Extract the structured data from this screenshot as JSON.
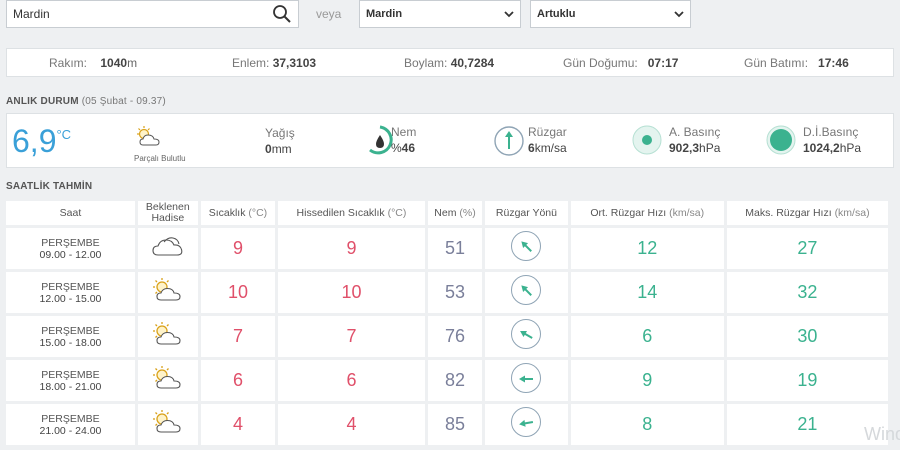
{
  "search": {
    "value": "Mardin"
  },
  "veya": "veya",
  "selects": {
    "city": "Mardin",
    "district": "Artuklu"
  },
  "location": {
    "rakim_label": "Rakım:",
    "rakim_value": "1040",
    "rakim_unit": "m",
    "enlem_label": "Enlem:",
    "enlem_value": "37,3103",
    "boylam_label": "Boylam:",
    "boylam_value": "40,7284",
    "gundogumu_label": "Gün Doğumu:",
    "gundogumu_value": "07:17",
    "gunbatimi_label": "Gün Batımı:",
    "gunbatimi_value": "17:46"
  },
  "current": {
    "title": "ANLIK DURUM",
    "subtitle": "(05 Şubat - 09.37)",
    "temp": "6,9",
    "temp_unit": "°C",
    "condition": "Parçalı Bulutlu",
    "condition_icon": "partly-cloudy-icon",
    "yagis_label": "Yağış",
    "yagis_value": "0",
    "yagis_unit": "mm",
    "nem_label": "Nem",
    "nem_prefix": "%",
    "nem_value": "46",
    "ruzgar_label": "Rüzgar",
    "ruzgar_value": "6",
    "ruzgar_unit": "km/sa",
    "abasinc_label": "A. Basınç",
    "abasinc_value": "902,3",
    "abasinc_unit": "hPa",
    "dibasinc_label": "D.İ.Basınç",
    "dibasinc_value": "1024,2",
    "dibasinc_unit": "hPa",
    "accent": "#3aa0d8",
    "green": "#3bb28f"
  },
  "hourly": {
    "title": "SAATLİK TAHMİN",
    "headers": {
      "saat": "Saat",
      "hadise": "Beklenen Hadise",
      "sicaklik": "Sıcaklık",
      "sicaklik_unit": "(°C)",
      "hissedilen": "Hissedilen Sıcaklık",
      "hissedilen_unit": "(°C)",
      "nem": "Nem",
      "nem_unit": "(%)",
      "ruzgar_yonu": "Rüzgar Yönü",
      "ort_ruzgar": "Ort. Rüzgar Hızı",
      "ort_ruzgar_unit": "(km/sa)",
      "maks_ruzgar": "Maks. Rüzgar Hızı",
      "maks_ruzgar_unit": "(km/sa)"
    },
    "rows": [
      {
        "day": "PERŞEMBE",
        "hours": "09.00 - 12.00",
        "icon": "cloudy-icon",
        "temp": "9",
        "feels": "9",
        "humidity": "51",
        "wind_dir_deg": 135,
        "avg_wind": "12",
        "max_wind": "27"
      },
      {
        "day": "PERŞEMBE",
        "hours": "12.00 - 15.00",
        "icon": "partly-cloudy-icon",
        "temp": "10",
        "feels": "10",
        "humidity": "53",
        "wind_dir_deg": 135,
        "avg_wind": "14",
        "max_wind": "32"
      },
      {
        "day": "PERŞEMBE",
        "hours": "15.00 - 18.00",
        "icon": "partly-cloudy-icon",
        "temp": "7",
        "feels": "7",
        "humidity": "76",
        "wind_dir_deg": 120,
        "avg_wind": "6",
        "max_wind": "30"
      },
      {
        "day": "PERŞEMBE",
        "hours": "18.00 - 21.00",
        "icon": "partly-cloudy-icon",
        "temp": "6",
        "feels": "6",
        "humidity": "82",
        "wind_dir_deg": 90,
        "avg_wind": "9",
        "max_wind": "19"
      },
      {
        "day": "PERŞEMBE",
        "hours": "21.00 - 24.00",
        "icon": "partly-cloudy-icon",
        "temp": "4",
        "feels": "4",
        "humidity": "85",
        "wind_dir_deg": 80,
        "avg_wind": "8",
        "max_wind": "21"
      }
    ]
  },
  "colors": {
    "temp": "#e0506a",
    "humidity": "#7a7f9a",
    "wind": "#3bb28f"
  },
  "watermark": "Wind"
}
